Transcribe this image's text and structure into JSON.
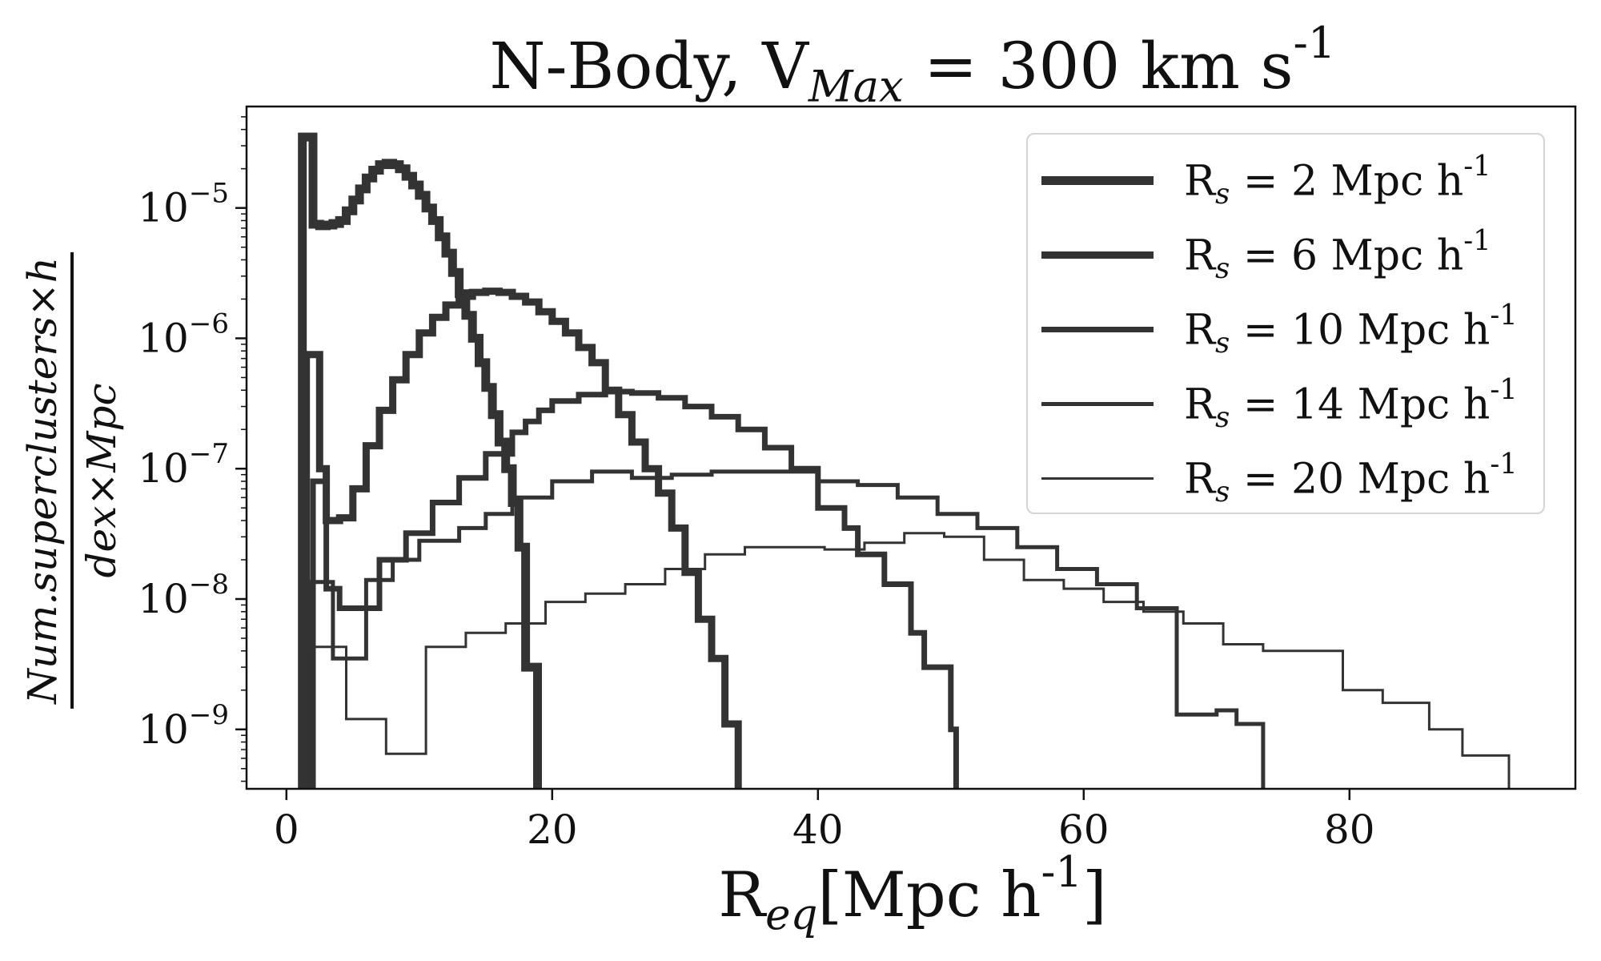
{
  "title": "N-Body, V_Max = 300 km s^-1",
  "xlabel": "R_eq[Mpc h^-1]",
  "ylabel": {
    "numerator": "Num.superclusters×h",
    "denominator": "dex×Mpc"
  },
  "colors": {
    "line": "#333333",
    "axes": "#111111"
  },
  "chart_data": {
    "type": "line",
    "drawstyle": "steps",
    "xlim": [
      -3,
      97
    ],
    "ylim": [
      3.5e-10,
      6e-05
    ],
    "yscale": "log",
    "grid": false,
    "legend_position": "top-right",
    "x_ticks": [
      0,
      20,
      40,
      60,
      80
    ],
    "x_tick_labels": [
      "0",
      "20",
      "40",
      "60",
      "80"
    ],
    "y_ticks": [
      1e-09,
      1e-08,
      1e-07,
      1e-06,
      1e-05
    ],
    "y_tick_labels": [
      "10^-9",
      "10^-8",
      "10^-7",
      "10^-6",
      "10^-5"
    ],
    "series": [
      {
        "name": "R_s = 2 Mpc h^-1",
        "line_width": 11,
        "points": [
          [
            1.2,
            3.5e-05
          ],
          [
            2.0,
            7.5e-06
          ],
          [
            2.5,
            7.3e-06
          ],
          [
            3.0,
            7.4e-06
          ],
          [
            3.5,
            7.6e-06
          ],
          [
            4.0,
            8e-06
          ],
          [
            4.5,
            9.5e-06
          ],
          [
            5.0,
            1.15e-05
          ],
          [
            5.5,
            1.4e-05
          ],
          [
            6.0,
            1.7e-05
          ],
          [
            6.5,
            1.95e-05
          ],
          [
            7.0,
            2.15e-05
          ],
          [
            7.5,
            2.2e-05
          ],
          [
            8.0,
            2.15e-05
          ],
          [
            8.5,
            2e-05
          ],
          [
            9.0,
            1.75e-05
          ],
          [
            9.5,
            1.5e-05
          ],
          [
            10.0,
            1.25e-05
          ],
          [
            10.5,
            1e-05
          ],
          [
            11.0,
            8e-06
          ],
          [
            11.5,
            6e-06
          ],
          [
            12.0,
            4.5e-06
          ],
          [
            12.5,
            3.2e-06
          ],
          [
            13.0,
            2.2e-06
          ],
          [
            13.5,
            1.5e-06
          ],
          [
            14.0,
            1e-06
          ],
          [
            14.5,
            6.5e-07
          ],
          [
            15.0,
            4.2e-07
          ],
          [
            15.5,
            2.6e-07
          ],
          [
            16.0,
            1.6e-07
          ],
          [
            16.5,
            1e-07
          ],
          [
            17.0,
            5.5e-08
          ],
          [
            17.5,
            2.5e-08
          ],
          [
            18.0,
            3e-09
          ],
          [
            18.9,
            3e-09
          ]
        ]
      },
      {
        "name": "R_s = 6 Mpc h^-1",
        "line_width": 9,
        "points": [
          [
            1.5,
            7.5e-07
          ],
          [
            2.5,
            1e-07
          ],
          [
            3.0,
            4e-08
          ],
          [
            4.0,
            4.2e-08
          ],
          [
            5.0,
            7e-08
          ],
          [
            6.0,
            1.5e-07
          ],
          [
            7.0,
            2.8e-07
          ],
          [
            8.0,
            4.8e-07
          ],
          [
            9.0,
            7.5e-07
          ],
          [
            10.0,
            1.1e-06
          ],
          [
            11.0,
            1.45e-06
          ],
          [
            12.0,
            1.8e-06
          ],
          [
            13.0,
            2.1e-06
          ],
          [
            14.0,
            2.25e-06
          ],
          [
            15.0,
            2.3e-06
          ],
          [
            16.0,
            2.25e-06
          ],
          [
            17.0,
            2.1e-06
          ],
          [
            18.0,
            1.9e-06
          ],
          [
            19.0,
            1.6e-06
          ],
          [
            20.0,
            1.35e-06
          ],
          [
            21.0,
            1.1e-06
          ],
          [
            22.0,
            8.5e-07
          ],
          [
            23.0,
            6.5e-07
          ],
          [
            24.0,
            4e-07
          ],
          [
            25.0,
            2.6e-07
          ],
          [
            26.0,
            1.6e-07
          ],
          [
            27.0,
            1e-07
          ],
          [
            28.0,
            6.5e-08
          ],
          [
            29.0,
            3.5e-08
          ],
          [
            30.0,
            1.6e-08
          ],
          [
            31.0,
            7e-09
          ],
          [
            32.0,
            3.5e-09
          ],
          [
            33.0,
            1.1e-09
          ],
          [
            34.0,
            1.1e-09
          ]
        ]
      },
      {
        "name": "R_s = 10 Mpc h^-1",
        "line_width": 7,
        "points": [
          [
            2.0,
            8e-08
          ],
          [
            3.0,
            1.2e-08
          ],
          [
            4.0,
            8.5e-09
          ],
          [
            6.0,
            8.5e-09
          ],
          [
            7.0,
            2e-08
          ],
          [
            9.0,
            3.2e-08
          ],
          [
            11.0,
            5.5e-08
          ],
          [
            13.0,
            8.5e-08
          ],
          [
            15.0,
            1.3e-07
          ],
          [
            17.0,
            1.9e-07
          ],
          [
            18.0,
            2.3e-07
          ],
          [
            19.0,
            2.8e-07
          ],
          [
            20.0,
            3.3e-07
          ],
          [
            22.0,
            3.7e-07
          ],
          [
            24.0,
            3.9e-07
          ],
          [
            26.0,
            3.8e-07
          ],
          [
            28.0,
            3.5e-07
          ],
          [
            30.0,
            3e-07
          ],
          [
            32.0,
            2.5e-07
          ],
          [
            34.0,
            2e-07
          ],
          [
            36.0,
            1.45e-07
          ],
          [
            38.0,
            1e-07
          ],
          [
            40.0,
            5e-08
          ],
          [
            42.0,
            3.5e-08
          ],
          [
            43.0,
            2.2e-08
          ],
          [
            45.0,
            1.3e-08
          ],
          [
            47.0,
            5.5e-09
          ],
          [
            48.0,
            3e-09
          ],
          [
            50.0,
            1e-09
          ],
          [
            50.4,
            1e-09
          ]
        ]
      },
      {
        "name": "R_s = 14 Mpc h^-1",
        "line_width": 5,
        "points": [
          [
            1.8,
            1.35e-08
          ],
          [
            3.5,
            3.5e-09
          ],
          [
            6.0,
            1.4e-08
          ],
          [
            8.0,
            2e-08
          ],
          [
            10.0,
            2.8e-08
          ],
          [
            12.0,
            2.8e-08
          ],
          [
            13.0,
            3.5e-08
          ],
          [
            15.0,
            4.5e-08
          ],
          [
            17.0,
            6e-08
          ],
          [
            20.0,
            8e-08
          ],
          [
            23.0,
            9.5e-08
          ],
          [
            26.0,
            8.5e-08
          ],
          [
            29.0,
            9e-08
          ],
          [
            32.0,
            9.5e-08
          ],
          [
            35.0,
            9.5e-08
          ],
          [
            38.0,
            9.5e-08
          ],
          [
            40.0,
            8e-08
          ],
          [
            43.0,
            7.5e-08
          ],
          [
            46.0,
            6e-08
          ],
          [
            49.0,
            4.5e-08
          ],
          [
            52.0,
            3.5e-08
          ],
          [
            55.0,
            2.5e-08
          ],
          [
            58.0,
            1.7e-08
          ],
          [
            61.0,
            1.3e-08
          ],
          [
            64.0,
            8.5e-09
          ],
          [
            67.0,
            1.3e-09
          ],
          [
            69.0,
            1.3e-09
          ],
          [
            70.0,
            1.4e-09
          ],
          [
            71.5,
            1.1e-09
          ],
          [
            73.5,
            1.1e-09
          ]
        ]
      },
      {
        "name": "R_s = 20 Mpc h^-1",
        "line_width": 3,
        "points": [
          [
            1.8,
            4.3e-09
          ],
          [
            4.5,
            1.2e-09
          ],
          [
            7.5,
            6.5e-10
          ],
          [
            10.5,
            4.3e-09
          ],
          [
            13.5,
            5.5e-09
          ],
          [
            16.5,
            6.5e-09
          ],
          [
            19.5,
            9.5e-09
          ],
          [
            22.5,
            1.1e-08
          ],
          [
            25.5,
            1.3e-08
          ],
          [
            28.5,
            1.7e-08
          ],
          [
            31.5,
            2.2e-08
          ],
          [
            34.5,
            2.5e-08
          ],
          [
            37.5,
            2.5e-08
          ],
          [
            40.5,
            2.4e-08
          ],
          [
            43.5,
            2.7e-08
          ],
          [
            46.5,
            3.2e-08
          ],
          [
            49.5,
            3e-08
          ],
          [
            52.5,
            2e-08
          ],
          [
            55.5,
            1.4e-08
          ],
          [
            58.5,
            1.2e-08
          ],
          [
            61.5,
            9.5e-09
          ],
          [
            64.5,
            8e-09
          ],
          [
            67.5,
            6.5e-09
          ],
          [
            70.5,
            4.5e-09
          ],
          [
            73.5,
            4e-09
          ],
          [
            76.5,
            4e-09
          ],
          [
            79.5,
            2e-09
          ],
          [
            82.5,
            1.6e-09
          ],
          [
            86.0,
            1e-09
          ],
          [
            88.5,
            6.3e-10
          ],
          [
            92.0,
            6.3e-10
          ]
        ]
      }
    ]
  }
}
